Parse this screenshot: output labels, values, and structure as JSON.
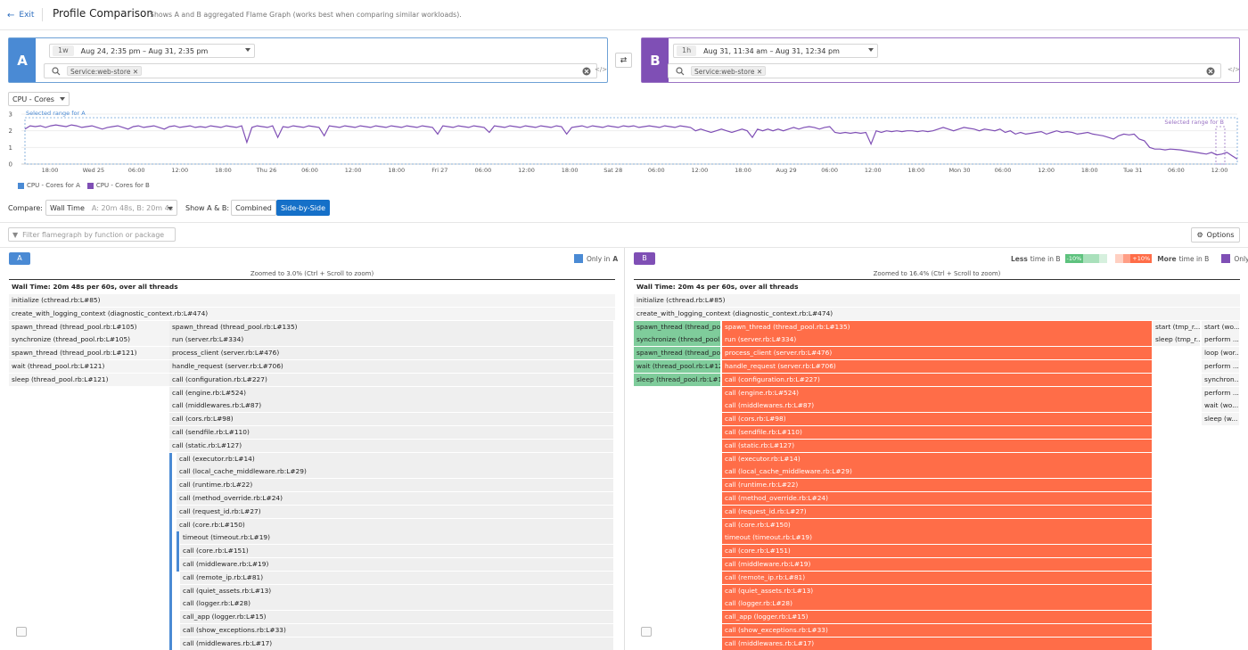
{
  "header": {
    "exit": "Exit",
    "title": "Profile Comparison",
    "subtitle": "Shows A and B aggregated Flame Graph (works best when comparing similar workloads)."
  },
  "query_a": {
    "letter": "A",
    "badge": "1w",
    "range": "Aug 24, 2:35 pm – Aug 31, 2:35 pm",
    "tag": "Service:web-store",
    "color": "#4a8ad4"
  },
  "query_b": {
    "letter": "B",
    "badge": "1h",
    "range": "Aug 31, 11:34 am – Aug 31, 12:34 pm",
    "tag": "Service:web-store",
    "color": "#7f4fb5"
  },
  "metric_select": "CPU - Cores",
  "chart_data": {
    "type": "line",
    "y_ticks": [
      "3",
      "2",
      "1",
      "0"
    ],
    "ylim": [
      0,
      3
    ],
    "x_ticks": [
      "18:00",
      "Wed 25",
      "06:00",
      "12:00",
      "18:00",
      "Thu 26",
      "06:00",
      "12:00",
      "18:00",
      "Fri 27",
      "06:00",
      "12:00",
      "18:00",
      "Sat 28",
      "06:00",
      "12:00",
      "18:00",
      "Aug 29",
      "06:00",
      "12:00",
      "18:00",
      "Mon 30",
      "06:00",
      "12:00",
      "18:00",
      "Tue 31",
      "06:00",
      "12:00"
    ],
    "range_a_label": "Selected range for A",
    "range_b_label": "Selected range for B",
    "legend": [
      "CPU - Cores for A",
      "CPU - Cores for B"
    ],
    "series": [
      {
        "name": "CPU - Cores for B",
        "color": "#7f4fb5",
        "values": [
          2.1,
          2.3,
          2.25,
          2.3,
          2.2,
          2.3,
          2.35,
          2.3,
          2.25,
          2.35,
          2.3,
          2.2,
          2.25,
          2.3,
          2.2,
          2.1,
          2.2,
          2.25,
          2.3,
          2.2,
          2.1,
          2.25,
          2.3,
          2.2,
          2.25,
          2.3,
          2.2,
          2.1,
          2.25,
          2.3,
          2.2,
          2.25,
          2.3,
          2.2,
          2.25,
          2.2,
          2.3,
          2.25,
          2.2,
          2.3,
          2.25,
          2.2,
          2.3,
          1.3,
          2.2,
          2.3,
          2.25,
          2.2,
          2.3,
          1.6,
          2.25,
          2.2,
          2.3,
          2.25,
          2.2,
          2.3,
          2.25,
          2.2,
          1.7,
          2.3,
          2.25,
          2.2,
          2.3,
          2.25,
          2.2,
          2.3,
          2.25,
          2.2,
          2.3,
          2.25,
          2.2,
          2.3,
          2.25,
          2.2,
          2.3,
          2.25,
          2.2,
          2.3,
          2.25,
          2.2,
          1.8,
          2.3,
          2.25,
          2.2,
          2.3,
          2.25,
          2.2,
          2.3,
          2.25,
          2.2,
          1.9,
          2.3,
          2.25,
          2.2,
          2.3,
          2.25,
          2.2,
          2.3,
          2.25,
          2.2,
          2.3,
          2.25,
          2.2,
          2.3,
          2.25,
          1.8,
          2.2,
          2.25,
          2.3,
          2.2,
          2.3,
          2.25,
          2.2,
          2.3,
          2.25,
          2.2,
          2.3,
          2.25,
          2.3,
          2.2,
          2.25,
          2.3,
          2.25,
          2.2,
          2.3,
          2.25,
          2.2,
          2.3,
          2.25,
          2.2,
          2.0,
          2.1,
          2.0,
          1.9,
          2.0,
          2.1,
          2.0,
          1.9,
          2.0,
          2.1,
          2.0,
          1.6,
          2.1,
          2.0,
          2.1,
          2.0,
          2.1,
          2.0,
          2.1,
          2.2,
          2.1,
          2.2,
          2.25,
          2.2,
          2.1,
          2.2,
          2.25,
          1.9,
          1.85,
          1.9,
          1.85,
          1.9,
          1.85,
          1.9,
          1.2,
          2.0,
          1.9,
          2.0,
          1.95,
          2.0,
          1.95,
          2.0,
          2.0,
          1.95,
          2.0,
          1.95,
          2.0,
          2.1,
          2.2,
          2.1,
          2.0,
          2.1,
          2.2,
          2.15,
          2.1,
          2.0,
          2.1,
          2.05,
          2.0,
          2.1,
          1.9,
          2.0,
          1.8,
          1.9,
          1.8,
          1.85,
          1.9,
          1.95,
          1.8,
          1.9,
          2.0,
          1.9,
          1.95,
          1.9,
          1.8,
          1.85,
          1.9,
          1.8,
          1.75,
          1.7,
          1.6,
          1.5,
          1.7,
          1.8,
          1.75,
          1.8,
          1.5,
          1.4,
          1.0,
          0.9,
          0.9,
          0.85,
          0.9,
          0.88,
          0.85,
          0.8,
          0.75,
          0.7,
          0.65,
          0.6,
          0.7,
          0.55,
          0.6,
          0.7,
          0.5,
          0.3
        ]
      }
    ]
  },
  "compare": {
    "label": "Compare:",
    "mode": "Wall Time",
    "mode_detail": "A: 20m 48s, B: 20m 4s",
    "show_label": "Show A & B:",
    "combined": "Combined",
    "side_by_side": "Side-by-Side"
  },
  "filter": {
    "placeholder": "Filter flamegraph by function or package"
  },
  "options": "Options",
  "pane_a": {
    "badge": "A",
    "legend": "Only in",
    "legend_b": "A",
    "zoom": "Zoomed to 3.0% (Ctrl + Scroll to zoom)",
    "root": "Wall Time: 20m 48s per 60s, over all threads"
  },
  "pane_b": {
    "badge": "B",
    "less": "Less",
    "less_t": "time in B",
    "neg": "-10%",
    "pos": "+10%",
    "more": "More",
    "more_t": "time in B",
    "legend": "Only in",
    "legend_b": "B",
    "zoom": "Zoomed to 16.4% (Ctrl + Scroll to zoom)",
    "root": "Wall Time: 20m 4s per 60s, over all threads"
  },
  "frames_a_top": [
    "initialize (cthread.rb:L#85)",
    "create_with_logging_context (diagnostic_context.rb:L#474)"
  ],
  "frames_a_left": [
    "spawn_thread (thread_pool.rb:L#105)",
    "synchronize (thread_pool.rb:L#105)",
    "spawn_thread (thread_pool.rb:L#121)",
    "wait (thread_pool.rb:L#121)",
    "sleep (thread_pool.rb:L#121)"
  ],
  "frames_a_right": [
    "spawn_thread (thread_pool.rb:L#135)",
    "run (server.rb:L#334)",
    "process_client (server.rb:L#476)",
    "handle_request (server.rb:L#706)",
    "call (configuration.rb:L#227)",
    "call (engine.rb:L#524)",
    "call (middlewares.rb:L#87)",
    "call (cors.rb:L#98)",
    "call (sendfile.rb:L#110)",
    "call (static.rb:L#127)",
    "call (executor.rb:L#14)",
    "call (local_cache_middleware.rb:L#29)",
    "call (runtime.rb:L#22)",
    "call (method_override.rb:L#24)",
    "call (request_id.rb:L#27)",
    "call (core.rb:L#150)",
    "timeout (timeout.rb:L#19)",
    "call (core.rb:L#151)",
    "call (middleware.rb:L#19)",
    "call (remote_ip.rb:L#81)",
    "call (quiet_assets.rb:L#13)",
    "call (logger.rb:L#28)",
    "call_app (logger.rb:L#15)",
    "call (show_exceptions.rb:L#33)",
    "call (middlewares.rb:L#17)"
  ],
  "frames_b_left": [
    "spawn_thread (thread_pool...",
    "synchronize (thread_pool....",
    "spawn_thread (thread_pool...",
    "wait (thread_pool.rb:L#121)",
    "sleep (thread_pool.rb:L#121)"
  ],
  "frames_b_right": [
    "spawn_thread (thread_pool.rb:L#135)",
    "run (server.rb:L#334)",
    "process_client (server.rb:L#476)",
    "handle_request (server.rb:L#706)",
    "call (configuration.rb:L#227)",
    "call (engine.rb:L#524)",
    "call (middlewares.rb:L#87)",
    "call (cors.rb:L#98)",
    "call (sendfile.rb:L#110)",
    "call (static.rb:L#127)",
    "call (executor.rb:L#14)",
    "call (local_cache_middleware.rb:L#29)",
    "call (runtime.rb:L#22)",
    "call (method_override.rb:L#24)",
    "call (request_id.rb:L#27)",
    "call (core.rb:L#150)",
    "timeout (timeout.rb:L#19)",
    "call (core.rb:L#151)",
    "call (middleware.rb:L#19)",
    "call (remote_ip.rb:L#81)",
    "call (quiet_assets.rb:L#13)",
    "call (logger.rb:L#28)",
    "call_app (logger.rb:L#15)",
    "call (show_exceptions.rb:L#33)",
    "call (middlewares.rb:L#17)"
  ],
  "frames_b_col3": [
    "start (tmp_r...",
    "sleep (tmp_r..."
  ],
  "frames_b_col4": [
    "start (wo...",
    "perform ...",
    "loop (wor...",
    "perform ...",
    "synchron...",
    "perform ...",
    "wait (wo...",
    "sleep (w..."
  ]
}
